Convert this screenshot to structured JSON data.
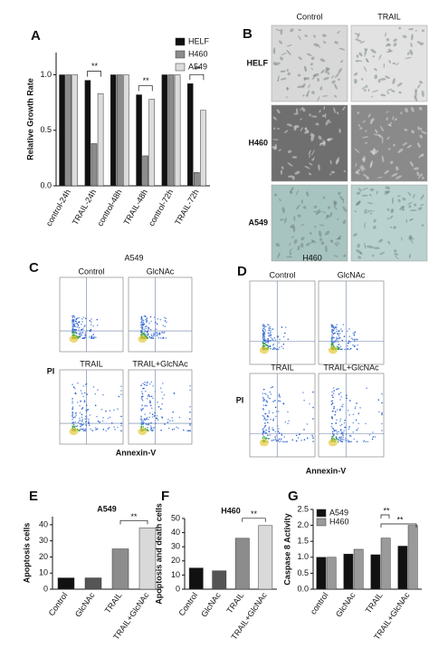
{
  "chart_data": [
    {
      "type": "bar",
      "panel": "A",
      "ylabel": "Relative Growth Rate",
      "categories": [
        "control-24h",
        "TRAIL-24h",
        "control-48h",
        "TRAIL-48h",
        "control-72h",
        "TRAIL-72h"
      ],
      "series": [
        {
          "name": "HELF",
          "color": "#111111",
          "values": [
            1.0,
            0.95,
            1.0,
            0.82,
            1.0,
            0.92
          ]
        },
        {
          "name": "H460",
          "color": "#8c8c8c",
          "values": [
            1.0,
            0.38,
            1.0,
            0.27,
            1.0,
            0.12
          ]
        },
        {
          "name": "A549",
          "color": "#dcdcdc",
          "values": [
            1.0,
            0.83,
            1.0,
            0.78,
            1.0,
            0.68
          ]
        }
      ],
      "ylim": [
        0,
        1.2
      ],
      "yticks": [
        {
          "value": 0,
          "label": "0.0"
        },
        {
          "value": 0.5,
          "label": "0.5"
        },
        {
          "value": 1,
          "label": "1.0"
        }
      ],
      "annotations": [
        "**",
        "**",
        "**"
      ]
    },
    {
      "type": "bar",
      "panel": "E",
      "title": "A549",
      "ylabel": "Apoptosis cells",
      "categories": [
        "Control",
        "GlcNAc",
        "TRAIL",
        "TRAIL+GlcNAc"
      ],
      "values": [
        7,
        7,
        25,
        38
      ],
      "colors": [
        "#111111",
        "#555555",
        "#8c8c8c",
        "#d9d9d9"
      ],
      "ylim": [
        0,
        45
      ],
      "yticks": [
        0,
        10,
        20,
        30,
        40
      ],
      "annotations": [
        "**"
      ]
    },
    {
      "type": "bar",
      "panel": "F",
      "title": "H460",
      "ylabel": "Apoptosis and death cells",
      "categories": [
        "Control",
        "GlcNAc",
        "TRAIL",
        "TRAIL+GlcNAc"
      ],
      "values": [
        15,
        13,
        36,
        45
      ],
      "colors": [
        "#111111",
        "#555555",
        "#8c8c8c",
        "#d9d9d9"
      ],
      "ylim": [
        0,
        50
      ],
      "yticks": [
        0,
        10,
        20,
        30,
        40,
        50
      ],
      "annotations": [
        "**"
      ]
    },
    {
      "type": "bar",
      "panel": "G",
      "ylabel": "Caspase 8 Activity",
      "categories": [
        "control",
        "GlcNAc",
        "TRAIL",
        "TRAIL+GlcNAc"
      ],
      "series": [
        {
          "name": "A549",
          "color": "#111111",
          "values": [
            1.0,
            1.1,
            1.08,
            1.35
          ]
        },
        {
          "name": "H460",
          "color": "#9a9a9a",
          "values": [
            1.0,
            1.25,
            1.6,
            2.0
          ]
        }
      ],
      "ylim": [
        0,
        2.5
      ],
      "yticks": [
        {
          "value": 0,
          "label": "0.0"
        },
        {
          "value": 0.5,
          "label": "0.5"
        },
        {
          "value": 1,
          "label": "1.0"
        },
        {
          "value": 1.5,
          "label": "1.5"
        },
        {
          "value": 2,
          "label": "2.0"
        },
        {
          "value": 2.5,
          "label": "2.5"
        }
      ],
      "annotations": [
        "**",
        "**"
      ]
    }
  ],
  "panel_b": {
    "panel": "B",
    "columns": [
      "Control",
      "TRAIL"
    ],
    "rows": [
      "HELF",
      "H460",
      "A549"
    ]
  },
  "panel_c": {
    "panel": "C",
    "title": "A549",
    "plots": [
      "Control",
      "GlcNAc",
      "TRAIL",
      "TRAIL+GlcNAc"
    ],
    "ylabel": "PI",
    "xlabel": "Annexin-V"
  },
  "panel_d": {
    "panel": "D",
    "title": "H460",
    "plots": [
      "Control",
      "GlcNAc",
      "TRAIL",
      "TRAIL+GlcNAc"
    ],
    "ylabel": "PI",
    "xlabel": "Annexin-V"
  }
}
